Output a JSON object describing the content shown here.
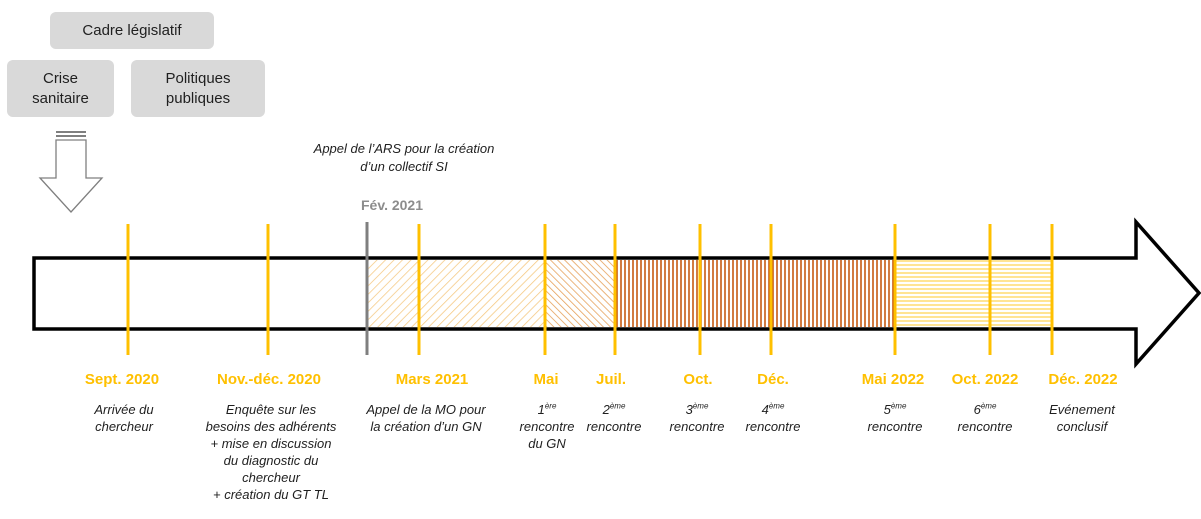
{
  "context": {
    "legal_framework": "Cadre législatif",
    "health_crisis": "Crise sanitaire",
    "public_policies": "Politiques publiques"
  },
  "ars_call": {
    "text": "Appel de l’ARS pour la création d’un collectif SI",
    "date": "Fév. 2021"
  },
  "colors": {
    "tick": "#ffc000",
    "ars_tick": "#7f7f7f",
    "stripe_light": "#f5c77e",
    "stripe_mid": "#e6a15a",
    "stripe_dark": "#c65a11",
    "stripe_pale": "#ffd966"
  },
  "milestones": [
    {
      "date": "Sept. 2020",
      "lines": [
        {
          "t": "Arrivée du"
        },
        {
          "t": "chercheur"
        }
      ]
    },
    {
      "date": "Nov.-déc. 2020",
      "lines": [
        {
          "t": "Enquête sur les"
        },
        {
          "t": "besoins des adhérents"
        },
        {
          "t": "+ mise en discussion"
        },
        {
          "t": "du diagnostic du"
        },
        {
          "t": "chercheur"
        },
        {
          "t": "+ création du GT TL"
        }
      ]
    },
    {
      "date": "Mars 2021",
      "lines": [
        {
          "t": "Appel de la MO pour"
        },
        {
          "t": "la création d’un GN"
        }
      ]
    },
    {
      "date": "Mai",
      "lines": [
        {
          "t": "1",
          "sup": "ère"
        },
        {
          "t": "rencontre"
        },
        {
          "t": "du GN"
        }
      ]
    },
    {
      "date": "Juil.",
      "lines": [
        {
          "t": "2",
          "sup": "ème"
        },
        {
          "t": "rencontre"
        }
      ]
    },
    {
      "date": "Oct.",
      "lines": [
        {
          "t": "3",
          "sup": "ème"
        },
        {
          "t": "rencontre"
        }
      ]
    },
    {
      "date": "Déc.",
      "lines": [
        {
          "t": "4",
          "sup": "ème"
        },
        {
          "t": "rencontre"
        }
      ]
    },
    {
      "date": "Mai 2022",
      "lines": [
        {
          "t": "5",
          "sup": "ème"
        },
        {
          "t": "rencontre"
        }
      ]
    },
    {
      "date": "Oct. 2022",
      "lines": [
        {
          "t": "6",
          "sup": "ème"
        },
        {
          "t": "rencontre"
        }
      ]
    },
    {
      "date": "Déc. 2022",
      "lines": [
        {
          "t": "Evénement"
        },
        {
          "t": "conclusif"
        }
      ]
    }
  ]
}
